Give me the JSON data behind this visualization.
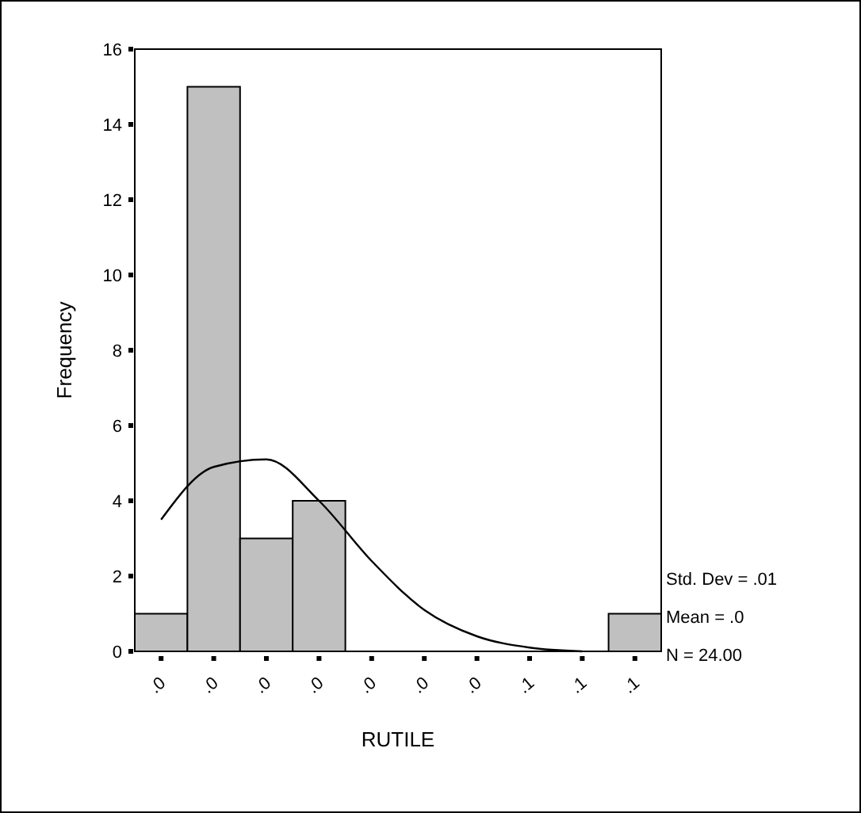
{
  "chart_data": {
    "type": "bar",
    "xlabel": "RUTILE",
    "ylabel": "Frequency",
    "categories": [
      ".0",
      ".0",
      ".0",
      ".0",
      ".0",
      ".0",
      ".0",
      ".1",
      ".1",
      ".1"
    ],
    "values": [
      1,
      15,
      3,
      4,
      0,
      0,
      0,
      0,
      0,
      1
    ],
    "color": "#c0c0c0",
    "series": [
      {
        "type": "line",
        "color": "#000000",
        "values": [
          3.5,
          4.9,
          5.1,
          4.0,
          2.4,
          1.1,
          0.4,
          0.1,
          0.0,
          null
        ]
      }
    ],
    "ylim": [
      0,
      16
    ],
    "yticks": [
      0,
      2,
      4,
      6,
      8,
      10,
      12,
      14,
      16
    ],
    "annotations": [
      "Std. Dev = .01",
      "Mean = .0",
      "N = 24.00"
    ]
  }
}
